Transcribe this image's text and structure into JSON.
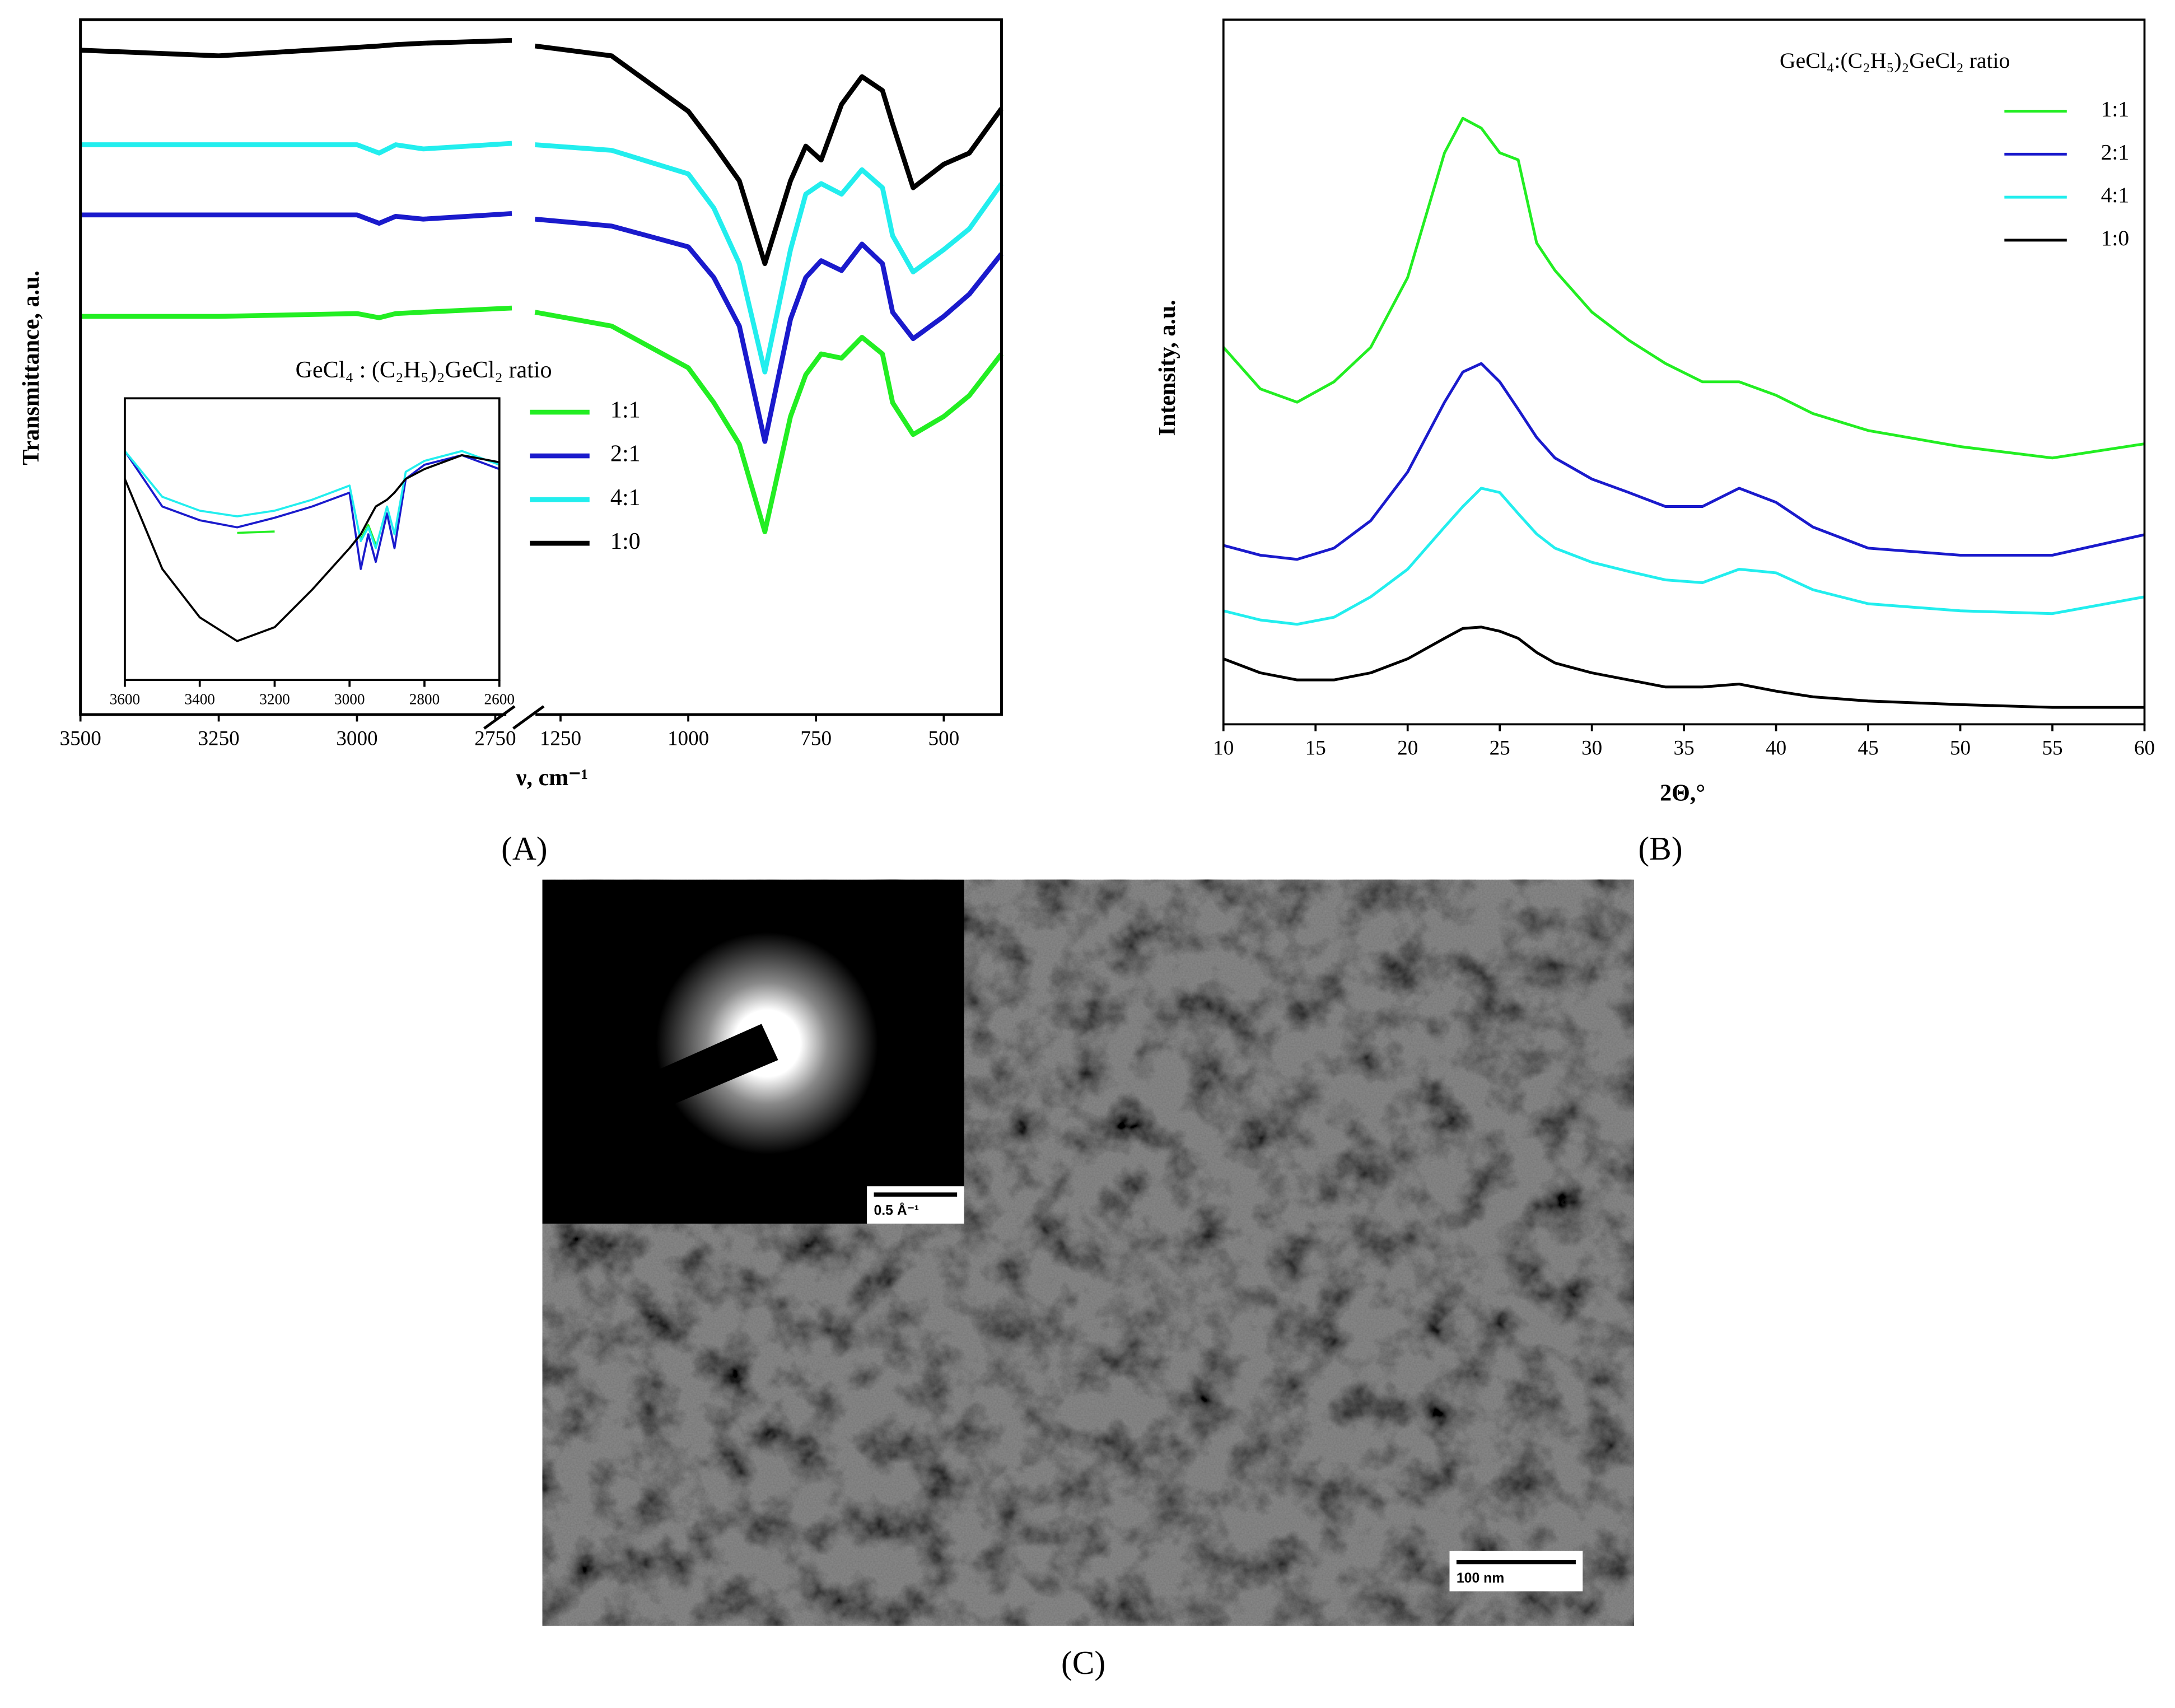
{
  "chart_data": [
    {
      "type": "line",
      "label": "(A)",
      "xlabel": "ν, cm⁻¹",
      "ylabel": "Transmittance, a.u.",
      "x": [
        3500,
        3250,
        3000,
        2960,
        2930,
        2880,
        2720,
        1300,
        1150,
        1000,
        950,
        900,
        850,
        800,
        770,
        740,
        700,
        660,
        620,
        600,
        560,
        500,
        450,
        387
      ],
      "xlim_segments": [
        [
          3500,
          2720
        ],
        [
          1310,
          387
        ]
      ],
      "xticks": [
        3500,
        3250,
        3000,
        2750,
        1250,
        1000,
        750,
        500
      ],
      "ylim": [
        0,
        100
      ],
      "legend_title": "GeCl₄ : (C₂H₅)₂GeCl₂ ratio",
      "legend_loc": "center",
      "series": [
        {
          "name": "1:1",
          "color": "#22ee22",
          "values": [
            57.3,
            57.3,
            57.7,
            57.1,
            57.7,
            57.9,
            58.5,
            57.9,
            55.9,
            49.9,
            44.9,
            38.9,
            26.3,
            42.9,
            48.9,
            51.9,
            51.3,
            54.3,
            51.9,
            44.9,
            40.3,
            42.9,
            45.9,
            51.9
          ]
        },
        {
          "name": "2:1",
          "color": "#1a1acc",
          "values": [
            71.9,
            71.9,
            71.9,
            70.7,
            71.7,
            71.3,
            72.1,
            71.3,
            70.3,
            67.3,
            62.9,
            55.9,
            39.3,
            56.9,
            62.9,
            65.3,
            63.9,
            67.7,
            64.9,
            57.9,
            54.1,
            57.3,
            60.5,
            66.3
          ]
        },
        {
          "name": "4:1",
          "color": "#22eeee",
          "values": [
            82.0,
            82.0,
            82.0,
            80.8,
            82.0,
            81.4,
            82.2,
            82.0,
            81.2,
            77.8,
            72.9,
            64.9,
            49.3,
            66.9,
            74.9,
            76.4,
            74.9,
            78.4,
            75.8,
            68.9,
            63.7,
            66.9,
            69.9,
            76.4
          ]
        },
        {
          "name": "1:0",
          "color": "#000000",
          "values": [
            95.6,
            94.8,
            96.0,
            96.2,
            96.4,
            96.6,
            97.0,
            96.2,
            94.8,
            86.8,
            82.0,
            76.8,
            64.9,
            76.8,
            81.8,
            79.8,
            87.8,
            91.8,
            89.8,
            85.0,
            75.8,
            79.2,
            80.8,
            87.2
          ]
        }
      ]
    },
    {
      "type": "line",
      "x": [
        3600,
        3500,
        3400,
        3300,
        3200,
        3100,
        3000,
        2970,
        2950,
        2930,
        2900,
        2880,
        2850,
        2800,
        2700,
        2600
      ],
      "xlim": [
        3600,
        2600
      ],
      "xticks": [
        3600,
        3400,
        3200,
        3000,
        2800,
        2600
      ],
      "ylim": [
        0,
        100
      ],
      "series": [
        {
          "name": "1:1",
          "color": "#22ee22",
          "values": [
            null,
            null,
            null,
            52.2,
            52.7,
            null,
            null,
            50.0,
            55.0,
            48.0,
            null,
            null,
            null,
            null,
            null,
            null
          ]
        },
        {
          "name": "2:1",
          "color": "#1a1acc",
          "values": [
            81.3,
            61.6,
            56.7,
            54.2,
            57.6,
            61.6,
            66.5,
            39.4,
            51.7,
            41.9,
            59.1,
            46.8,
            71.4,
            76.4,
            79.8,
            74.9
          ]
        },
        {
          "name": "4:1",
          "color": "#22eeee",
          "values": [
            81.3,
            65.0,
            60.1,
            58.1,
            60.1,
            64.0,
            69.0,
            49.3,
            54.2,
            46.8,
            61.6,
            51.7,
            73.9,
            77.8,
            81.3,
            76.4
          ]
        },
        {
          "name": "1:0",
          "color": "#000000",
          "values": [
            71.4,
            39.4,
            22.2,
            13.8,
            18.7,
            32.0,
            46.8,
            51.7,
            56.7,
            61.6,
            64.0,
            66.5,
            71.4,
            74.9,
            79.8,
            77.3
          ]
        }
      ]
    },
    {
      "type": "line",
      "label": "(B)",
      "xlabel": "2Θ,°",
      "ylabel": "Intensity, a.u.",
      "x": [
        10,
        12,
        14,
        16,
        18,
        20,
        22,
        23,
        24,
        25,
        26,
        27,
        28,
        30,
        32,
        34,
        36,
        38,
        40,
        42,
        45,
        50,
        55,
        60
      ],
      "xlim": [
        10,
        60
      ],
      "xticks": [
        10,
        15,
        20,
        25,
        30,
        35,
        40,
        45,
        50,
        55,
        60
      ],
      "ylim": [
        0,
        100
      ],
      "legend_title": "GeCl₄:(C₂H₅)₂GeCl₂ ratio",
      "legend_loc": "upper right",
      "series": [
        {
          "name": "1:1",
          "color": "#22ee22",
          "values": [
            53.5,
            47.6,
            45.7,
            48.6,
            53.5,
            63.4,
            81.1,
            86.0,
            84.6,
            81.1,
            80.1,
            68.3,
            64.4,
            58.5,
            54.5,
            51.2,
            48.6,
            48.6,
            46.7,
            44.1,
            41.7,
            39.4,
            37.8,
            39.8
          ]
        },
        {
          "name": "2:1",
          "color": "#1a1acc",
          "values": [
            25.4,
            24.0,
            23.4,
            25.0,
            28.9,
            35.8,
            45.7,
            50.0,
            51.2,
            48.6,
            44.7,
            40.7,
            37.8,
            34.8,
            32.9,
            30.9,
            30.9,
            33.5,
            31.5,
            28.0,
            25.0,
            24.0,
            24.0,
            26.9
          ]
        },
        {
          "name": "4:1",
          "color": "#22eeee",
          "values": [
            16.1,
            14.8,
            14.2,
            15.2,
            18.1,
            22.0,
            28.0,
            30.9,
            33.5,
            32.9,
            29.9,
            27.0,
            25.0,
            23.0,
            21.7,
            20.5,
            20.1,
            22.0,
            21.5,
            19.1,
            17.1,
            16.1,
            15.7,
            18.1
          ]
        },
        {
          "name": "1:0",
          "color": "#000000",
          "values": [
            9.3,
            7.3,
            6.3,
            6.3,
            7.3,
            9.3,
            12.2,
            13.6,
            13.8,
            13.2,
            12.2,
            10.2,
            8.7,
            7.3,
            6.3,
            5.3,
            5.3,
            5.7,
            4.7,
            3.9,
            3.3,
            2.8,
            2.4,
            2.4
          ]
        }
      ]
    }
  ],
  "image": {
    "label": "(C)",
    "diffraction_scale": "0.5 Å⁻¹",
    "scale_bar": "100 nm"
  }
}
